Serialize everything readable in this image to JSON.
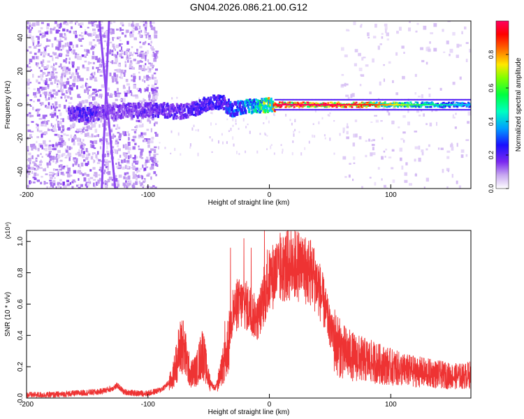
{
  "figure_title": "GN04.2026.086.21.00.G12",
  "chart_data": [
    {
      "type": "heatmap",
      "title": "GN04.2026.086.21.00.G12",
      "xlabel": "Height of straight line (km)",
      "ylabel": "Frequency (Hz)",
      "xlim": [
        -200,
        166
      ],
      "ylim": [
        -50,
        50
      ],
      "x_ticks": [
        -200,
        -100,
        0,
        100
      ],
      "x_tick_labels": [
        "-200",
        "-100",
        "0",
        "100"
      ],
      "y_ticks": [
        -40,
        -20,
        0,
        20,
        40
      ],
      "y_tick_labels": [
        "-40",
        "-20",
        "0",
        "20",
        "40"
      ],
      "grid": false,
      "colorbar": {
        "label": "Normalized spectral amplitude",
        "range": [
          0,
          1
        ],
        "ticks": [
          0.0,
          0.2,
          0.4,
          0.6,
          0.8
        ],
        "tick_labels": [
          "0.0",
          "0.2",
          "0.4",
          "0.6",
          "0.8"
        ],
        "colormap": [
          "#ffffff",
          "#c8a8f0",
          "#7a28f0",
          "#1a10ff",
          "#00c8ff",
          "#00ff60",
          "#ffe800",
          "#ff2000",
          "#ff0060"
        ]
      },
      "features": {
        "noise_region_x": [
          -200,
          -92
        ],
        "sparse_noise_region_x": [
          60,
          166
        ],
        "main_trace": [
          {
            "x": -165,
            "f": -5,
            "amp": 0.3
          },
          {
            "x": -150,
            "f": -6,
            "amp": 0.35
          },
          {
            "x": -140,
            "f": -5,
            "amp": 0.3
          },
          {
            "x": -130,
            "f": -4,
            "amp": 0.25
          },
          {
            "x": -90,
            "f": -3,
            "amp": 0.3
          },
          {
            "x": -80,
            "f": -4,
            "amp": 0.3
          },
          {
            "x": -70,
            "f": -4,
            "amp": 0.3
          },
          {
            "x": -60,
            "f": -2,
            "amp": 0.35
          },
          {
            "x": -50,
            "f": 1,
            "amp": 0.35
          },
          {
            "x": -40,
            "f": 2,
            "amp": 0.35
          },
          {
            "x": -30,
            "f": -3,
            "amp": 0.45
          },
          {
            "x": -20,
            "f": -1,
            "amp": 0.5
          },
          {
            "x": -10,
            "f": -1,
            "amp": 0.6
          },
          {
            "x": 0,
            "f": 0,
            "amp": 0.75
          },
          {
            "x": 10,
            "f": 0,
            "amp": 0.95
          },
          {
            "x": 50,
            "f": 0,
            "amp": 0.95
          },
          {
            "x": 80,
            "f": 0,
            "amp": 0.85
          },
          {
            "x": 120,
            "f": 0,
            "amp": 0.6
          },
          {
            "x": 166,
            "f": 0,
            "amp": 0.45
          }
        ],
        "diagonal_streaks": [
          {
            "x0": -140,
            "f0": 50,
            "x1": -127,
            "f1": -50
          },
          {
            "x0": -132,
            "f0": 50,
            "x1": -138,
            "f1": -50
          }
        ]
      }
    },
    {
      "type": "line",
      "xlabel": "Height of straight line (km)",
      "ylabel": "SNR (10 * v/v)",
      "y_multiplier": "(x10⁴)",
      "xlim": [
        -200,
        166
      ],
      "ylim": [
        0,
        1.07
      ],
      "x_ticks": [
        -200,
        -100,
        0,
        100
      ],
      "x_tick_labels": [
        "-200",
        "-100",
        "0",
        "100"
      ],
      "y_ticks": [
        0.0,
        0.2,
        0.4,
        0.6,
        0.8,
        1.0
      ],
      "y_tick_labels": [
        "0.0",
        "0.2",
        "0.4",
        "0.6",
        "0.8",
        "1.0"
      ],
      "grid": false,
      "series": [
        {
          "color": "#ee3333",
          "x": [
            -200,
            -180,
            -160,
            -140,
            -130,
            -125,
            -120,
            -110,
            -100,
            -90,
            -85,
            -80,
            -75,
            -72,
            -70,
            -65,
            -60,
            -55,
            -50,
            -45,
            -40,
            -35,
            -30,
            -25,
            -20,
            -15,
            -10,
            -5,
            0,
            5,
            10,
            15,
            20,
            25,
            30,
            35,
            40,
            45,
            50,
            55,
            60,
            70,
            80,
            90,
            100,
            110,
            120,
            130,
            140,
            150,
            160,
            166
          ],
          "y": [
            0.02,
            0.02,
            0.03,
            0.04,
            0.06,
            0.08,
            0.04,
            0.03,
            0.03,
            0.05,
            0.08,
            0.12,
            0.28,
            0.35,
            0.3,
            0.15,
            0.18,
            0.3,
            0.12,
            0.06,
            0.15,
            0.3,
            0.55,
            0.6,
            0.6,
            0.55,
            0.5,
            0.62,
            0.75,
            0.8,
            0.82,
            0.85,
            0.85,
            0.85,
            0.82,
            0.8,
            0.72,
            0.6,
            0.45,
            0.35,
            0.3,
            0.26,
            0.24,
            0.22,
            0.2,
            0.18,
            0.17,
            0.16,
            0.15,
            0.14,
            0.14,
            0.15
          ],
          "spikes": [
            {
              "x": -72,
              "y": 0.45
            },
            {
              "x": -32,
              "y": 0.96
            },
            {
              "x": -21,
              "y": 1.02
            },
            {
              "x": -15,
              "y": 0.96
            },
            {
              "x": -4,
              "y": 1.07
            },
            {
              "x": 8,
              "y": 0.92
            }
          ]
        }
      ]
    }
  ]
}
